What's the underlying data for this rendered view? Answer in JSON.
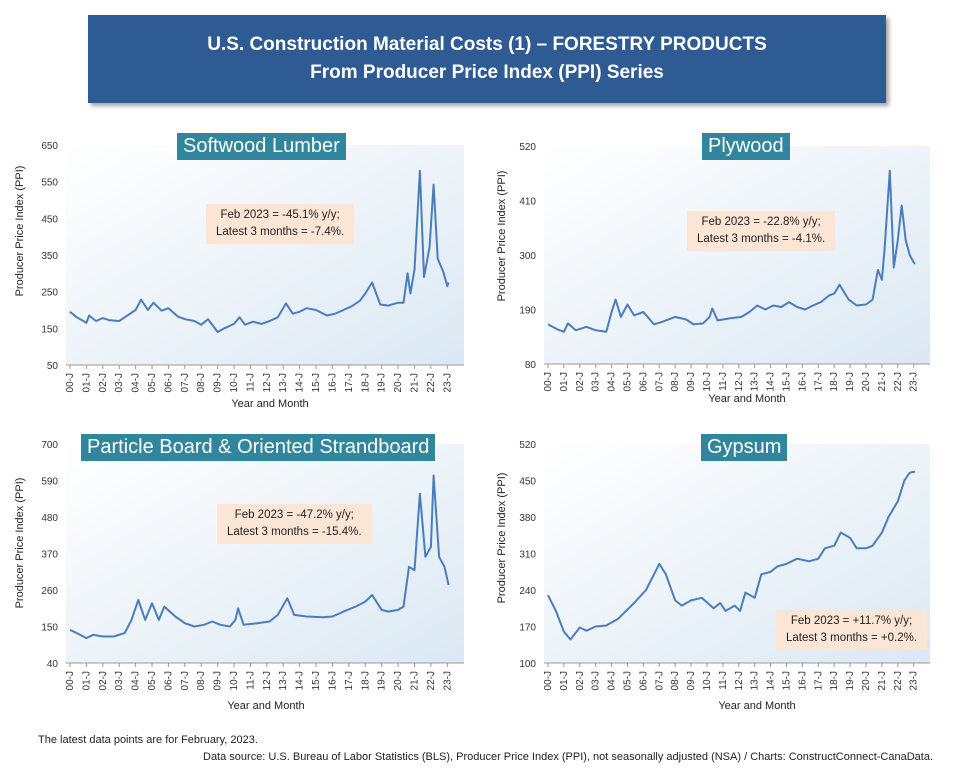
{
  "header": {
    "line1": "U.S. Construction Material Costs (1) – FORESTRY PRODUCTS",
    "line2": "From Producer Price Index (PPI) Series"
  },
  "footer": {
    "note": "The latest data points are for February, 2023.",
    "source": "Data source: U.S. Bureau of Labor Statistics (BLS), Producer Price Index (PPI), not seasonally adjusted (NSA) / Charts: ConstructConnect-CanaData."
  },
  "colors": {
    "line": "#4a7ebb",
    "title_bg": "#31859c",
    "note_bg": "#fbe5d5",
    "banner_bg": "#2f5b94"
  },
  "chart_data": [
    {
      "type": "line",
      "title": "Softwood Lumber",
      "xlabel": "Year and Month",
      "ylabel": "Producer Price Index (PPI)",
      "ylim": [
        50,
        650
      ],
      "yticks": [
        50,
        150,
        250,
        350,
        450,
        550,
        650
      ],
      "xticks": [
        "00-J",
        "01-J",
        "02-J",
        "03-J",
        "04-J",
        "05-J",
        "06-J",
        "07-J",
        "08-J",
        "09-J",
        "10-J",
        "11-J",
        "12-J",
        "13-J",
        "14-J",
        "15-J",
        "16-J",
        "17-J",
        "18-J",
        "19-J",
        "20-J",
        "21-J",
        "22-J",
        "23-J"
      ],
      "annotation": [
        "Feb 2023 = -45.1% y/y;",
        "Latest 3 months = -7.4%."
      ],
      "x_range": [
        "2000-01",
        "2023-02"
      ],
      "points": [
        [
          "2000-01",
          195
        ],
        [
          "2000-06",
          180
        ],
        [
          "2001-01",
          165
        ],
        [
          "2001-03",
          185
        ],
        [
          "2001-08",
          170
        ],
        [
          "2002-01",
          178
        ],
        [
          "2002-06",
          172
        ],
        [
          "2003-01",
          170
        ],
        [
          "2003-09",
          190
        ],
        [
          "2004-01",
          200
        ],
        [
          "2004-05",
          228
        ],
        [
          "2004-10",
          200
        ],
        [
          "2005-02",
          220
        ],
        [
          "2005-08",
          198
        ],
        [
          "2006-01",
          205
        ],
        [
          "2006-08",
          182
        ],
        [
          "2007-01",
          175
        ],
        [
          "2007-08",
          170
        ],
        [
          "2008-01",
          160
        ],
        [
          "2008-06",
          175
        ],
        [
          "2009-01",
          140
        ],
        [
          "2009-06",
          150
        ],
        [
          "2010-01",
          162
        ],
        [
          "2010-05",
          180
        ],
        [
          "2010-09",
          160
        ],
        [
          "2011-03",
          168
        ],
        [
          "2011-09",
          162
        ],
        [
          "2012-03",
          170
        ],
        [
          "2012-09",
          180
        ],
        [
          "2013-03",
          218
        ],
        [
          "2013-08",
          190
        ],
        [
          "2014-01",
          195
        ],
        [
          "2014-06",
          205
        ],
        [
          "2015-01",
          200
        ],
        [
          "2015-09",
          185
        ],
        [
          "2016-03",
          190
        ],
        [
          "2016-09",
          200
        ],
        [
          "2017-03",
          210
        ],
        [
          "2017-09",
          225
        ],
        [
          "2018-01",
          245
        ],
        [
          "2018-06",
          275
        ],
        [
          "2018-12",
          215
        ],
        [
          "2019-06",
          212
        ],
        [
          "2020-01",
          220
        ],
        [
          "2020-05",
          220
        ],
        [
          "2020-08",
          300
        ],
        [
          "2020-10",
          245
        ],
        [
          "2021-01",
          310
        ],
        [
          "2021-05",
          580
        ],
        [
          "2021-08",
          290
        ],
        [
          "2021-12",
          370
        ],
        [
          "2022-03",
          542
        ],
        [
          "2022-06",
          340
        ],
        [
          "2022-10",
          305
        ],
        [
          "2023-01",
          265
        ],
        [
          "2023-02",
          275
        ]
      ]
    },
    {
      "type": "line",
      "title": "Plywood",
      "xlabel": "Year and Month",
      "ylabel": "Producer Price Index (PPI)",
      "ylim": [
        80,
        520
      ],
      "yticks": [
        80,
        190,
        300,
        410,
        520
      ],
      "xticks": [
        "00-J",
        "01-J",
        "02-J",
        "03-J",
        "04-J",
        "05-J",
        "06-J",
        "07-J",
        "08-J",
        "09-J",
        "10-J",
        "11-J",
        "12-J",
        "13-J",
        "14-J",
        "15-J",
        "16-J",
        "17-J",
        "18-J",
        "19-J",
        "20-J",
        "21-J",
        "22-J",
        "23-J"
      ],
      "annotation": [
        "Feb 2023 = -22.8% y/y;",
        "Latest 3 months = -4.1%."
      ],
      "x_range": [
        "2000-01",
        "2023-02"
      ],
      "points": [
        [
          "2000-01",
          160
        ],
        [
          "2000-08",
          150
        ],
        [
          "2001-01",
          145
        ],
        [
          "2001-04",
          162
        ],
        [
          "2001-10",
          148
        ],
        [
          "2002-06",
          155
        ],
        [
          "2003-01",
          148
        ],
        [
          "2003-09",
          145
        ],
        [
          "2004-01",
          185
        ],
        [
          "2004-04",
          210
        ],
        [
          "2004-08",
          175
        ],
        [
          "2005-01",
          200
        ],
        [
          "2005-06",
          178
        ],
        [
          "2006-01",
          185
        ],
        [
          "2006-09",
          160
        ],
        [
          "2007-03",
          165
        ],
        [
          "2008-01",
          175
        ],
        [
          "2008-09",
          170
        ],
        [
          "2009-03",
          160
        ],
        [
          "2009-10",
          162
        ],
        [
          "2010-03",
          175
        ],
        [
          "2010-05",
          192
        ],
        [
          "2010-09",
          168
        ],
        [
          "2011-06",
          172
        ],
        [
          "2012-03",
          175
        ],
        [
          "2012-09",
          185
        ],
        [
          "2013-03",
          198
        ],
        [
          "2013-09",
          190
        ],
        [
          "2014-03",
          198
        ],
        [
          "2014-09",
          195
        ],
        [
          "2015-03",
          205
        ],
        [
          "2015-09",
          195
        ],
        [
          "2016-03",
          190
        ],
        [
          "2016-09",
          198
        ],
        [
          "2017-03",
          205
        ],
        [
          "2017-09",
          218
        ],
        [
          "2018-01",
          222
        ],
        [
          "2018-05",
          240
        ],
        [
          "2018-12",
          210
        ],
        [
          "2019-06",
          198
        ],
        [
          "2020-01",
          200
        ],
        [
          "2020-06",
          210
        ],
        [
          "2020-10",
          270
        ],
        [
          "2021-01",
          250
        ],
        [
          "2021-03",
          310
        ],
        [
          "2021-07",
          470
        ],
        [
          "2021-10",
          275
        ],
        [
          "2022-01",
          330
        ],
        [
          "2022-04",
          400
        ],
        [
          "2022-07",
          330
        ],
        [
          "2022-10",
          300
        ],
        [
          "2023-01",
          285
        ],
        [
          "2023-02",
          282
        ]
      ]
    },
    {
      "type": "line",
      "title": "Particle Board & Oriented Strandboard",
      "xlabel": "Year and Month",
      "ylabel": "Producer Price Index (PPI)",
      "ylim": [
        40,
        700
      ],
      "yticks": [
        40,
        150,
        260,
        370,
        480,
        590,
        700
      ],
      "xticks": [
        "00-J",
        "01-J",
        "02-J",
        "03-J",
        "04-J",
        "05-J",
        "06-J",
        "07-J",
        "08-J",
        "09-J",
        "10-J",
        "11-J",
        "12-J",
        "13-J",
        "14-J",
        "15-J",
        "16-J",
        "17-J",
        "18-J",
        "19-J",
        "20-J",
        "21-J",
        "22-J",
        "23-J"
      ],
      "annotation": [
        "Feb 2023 = -47.2% y/y;",
        "Latest 3 months = -15.4%."
      ],
      "x_range": [
        "2000-01",
        "2023-02"
      ],
      "points": [
        [
          "2000-01",
          140
        ],
        [
          "2000-06",
          130
        ],
        [
          "2001-01",
          115
        ],
        [
          "2001-06",
          125
        ],
        [
          "2002-01",
          120
        ],
        [
          "2002-09",
          120
        ],
        [
          "2003-05",
          130
        ],
        [
          "2003-10",
          170
        ],
        [
          "2004-03",
          230
        ],
        [
          "2004-08",
          170
        ],
        [
          "2005-01",
          220
        ],
        [
          "2005-06",
          170
        ],
        [
          "2005-10",
          210
        ],
        [
          "2006-06",
          180
        ],
        [
          "2007-01",
          160
        ],
        [
          "2007-08",
          150
        ],
        [
          "2008-03",
          155
        ],
        [
          "2008-09",
          165
        ],
        [
          "2009-03",
          155
        ],
        [
          "2009-10",
          150
        ],
        [
          "2010-02",
          170
        ],
        [
          "2010-04",
          205
        ],
        [
          "2010-08",
          155
        ],
        [
          "2011-06",
          160
        ],
        [
          "2012-03",
          165
        ],
        [
          "2012-09",
          185
        ],
        [
          "2013-04",
          235
        ],
        [
          "2013-09",
          185
        ],
        [
          "2014-06",
          180
        ],
        [
          "2015-06",
          178
        ],
        [
          "2016-01",
          180
        ],
        [
          "2016-09",
          195
        ],
        [
          "2017-06",
          210
        ],
        [
          "2018-01",
          225
        ],
        [
          "2018-06",
          245
        ],
        [
          "2019-01",
          200
        ],
        [
          "2019-06",
          195
        ],
        [
          "2020-01",
          200
        ],
        [
          "2020-05",
          210
        ],
        [
          "2020-09",
          330
        ],
        [
          "2021-01",
          320
        ],
        [
          "2021-05",
          550
        ],
        [
          "2021-09",
          360
        ],
        [
          "2022-01",
          390
        ],
        [
          "2022-03",
          605
        ],
        [
          "2022-07",
          360
        ],
        [
          "2022-11",
          330
        ],
        [
          "2023-02",
          275
        ]
      ]
    },
    {
      "type": "line",
      "title": "Gypsum",
      "xlabel": "Year and Month",
      "ylabel": "Producer Price Index (PPI)",
      "ylim": [
        100,
        520
      ],
      "yticks": [
        100,
        170,
        240,
        310,
        380,
        450,
        520
      ],
      "xticks": [
        "00-J",
        "01-J",
        "02-J",
        "03-J",
        "04-J",
        "05-J",
        "06-J",
        "07-J",
        "08-J",
        "09-J",
        "10-J",
        "11-J",
        "12-J",
        "13-J",
        "14-J",
        "15-J",
        "16-J",
        "17-J",
        "18-J",
        "19-J",
        "20-J",
        "21-J",
        "22-J",
        "23-J"
      ],
      "annotation": [
        "Feb 2023 = +11.7% y/y;",
        "Latest 3 months = +0.2%."
      ],
      "x_range": [
        "2000-01",
        "2023-02"
      ],
      "points": [
        [
          "2000-01",
          230
        ],
        [
          "2000-07",
          200
        ],
        [
          "2001-01",
          160
        ],
        [
          "2001-06",
          145
        ],
        [
          "2002-01",
          168
        ],
        [
          "2002-06",
          162
        ],
        [
          "2003-01",
          170
        ],
        [
          "2003-09",
          172
        ],
        [
          "2004-06",
          185
        ],
        [
          "2005-06",
          215
        ],
        [
          "2006-03",
          240
        ],
        [
          "2006-09",
          270
        ],
        [
          "2007-01",
          290
        ],
        [
          "2007-06",
          270
        ],
        [
          "2008-01",
          220
        ],
        [
          "2008-06",
          210
        ],
        [
          "2009-01",
          220
        ],
        [
          "2009-09",
          225
        ],
        [
          "2010-06",
          205
        ],
        [
          "2010-11",
          215
        ],
        [
          "2011-03",
          200
        ],
        [
          "2011-10",
          210
        ],
        [
          "2012-02",
          200
        ],
        [
          "2012-06",
          235
        ],
        [
          "2013-01",
          225
        ],
        [
          "2013-06",
          270
        ],
        [
          "2014-01",
          275
        ],
        [
          "2014-06",
          285
        ],
        [
          "2015-01",
          290
        ],
        [
          "2015-09",
          300
        ],
        [
          "2016-06",
          295
        ],
        [
          "2017-01",
          300
        ],
        [
          "2017-06",
          320
        ],
        [
          "2018-01",
          325
        ],
        [
          "2018-06",
          350
        ],
        [
          "2019-01",
          340
        ],
        [
          "2019-06",
          320
        ],
        [
          "2020-01",
          320
        ],
        [
          "2020-06",
          325
        ],
        [
          "2021-01",
          350
        ],
        [
          "2021-06",
          380
        ],
        [
          "2022-01",
          410
        ],
        [
          "2022-06",
          450
        ],
        [
          "2022-10",
          465
        ],
        [
          "2023-02",
          467
        ]
      ]
    }
  ]
}
